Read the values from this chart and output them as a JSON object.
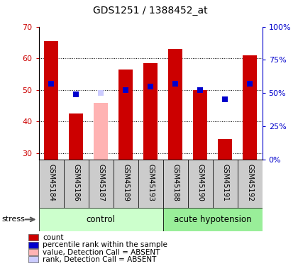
{
  "title": "GDS1251 / 1388452_at",
  "samples": [
    "GSM45184",
    "GSM45186",
    "GSM45187",
    "GSM45189",
    "GSM45193",
    "GSM45188",
    "GSM45190",
    "GSM45191",
    "GSM45192"
  ],
  "bar_values": [
    65.5,
    42.5,
    46.0,
    56.5,
    58.5,
    63.0,
    50.0,
    34.5,
    61.0
  ],
  "rank_values": [
    52.0,
    48.5,
    49.0,
    50.0,
    51.0,
    52.0,
    50.0,
    47.0,
    52.0
  ],
  "bar_colors": [
    "#cc0000",
    "#cc0000",
    "#ffb3b3",
    "#cc0000",
    "#cc0000",
    "#cc0000",
    "#cc0000",
    "#cc0000",
    "#cc0000"
  ],
  "rank_colors": [
    "#0000cc",
    "#0000cc",
    "#ccccff",
    "#0000cc",
    "#0000cc",
    "#0000cc",
    "#0000cc",
    "#0000cc",
    "#0000cc"
  ],
  "absent_flags": [
    false,
    false,
    true,
    false,
    false,
    false,
    false,
    false,
    false
  ],
  "ylim_left": [
    28,
    70
  ],
  "ylim_right": [
    0,
    100
  ],
  "yticks_left": [
    30,
    40,
    50,
    60,
    70
  ],
  "yticks_right": [
    0,
    25,
    50,
    75,
    100
  ],
  "control_group_indices": [
    0,
    4
  ],
  "hypotension_group_indices": [
    5,
    8
  ],
  "group_labels": [
    "control",
    "acute hypotension"
  ],
  "control_color": "#ccffcc",
  "hypotension_color": "#99ee99",
  "bar_width": 0.55,
  "rank_marker_size": 40,
  "ylabel_left_color": "#cc0000",
  "ylabel_right_color": "#0000cc",
  "legend_items": [
    {
      "label": "count",
      "color": "#cc0000"
    },
    {
      "label": "percentile rank within the sample",
      "color": "#0000cc"
    },
    {
      "label": "value, Detection Call = ABSENT",
      "color": "#ffb3b3"
    },
    {
      "label": "rank, Detection Call = ABSENT",
      "color": "#ccccff"
    }
  ],
  "stress_label": "stress",
  "title_fontsize": 10,
  "tick_fontsize": 8,
  "label_fontsize": 7,
  "legend_fontsize": 7.5,
  "group_fontsize": 8.5
}
